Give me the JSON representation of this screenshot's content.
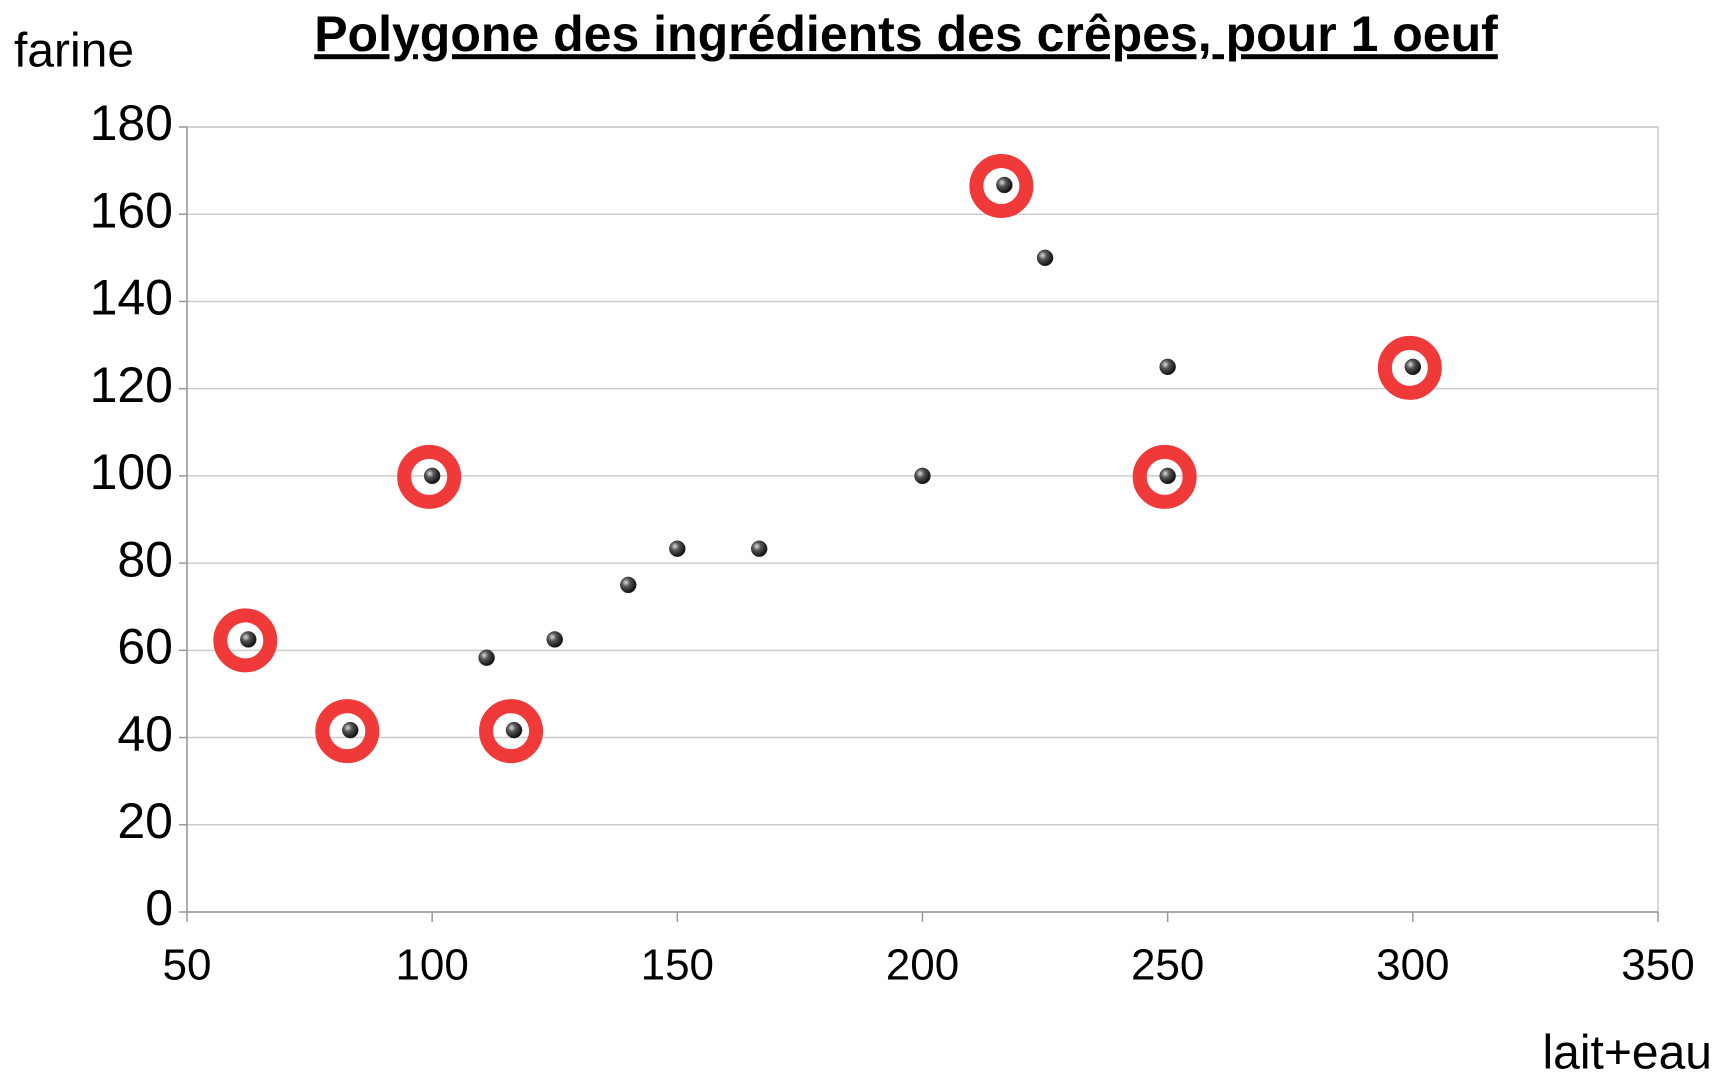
{
  "chart_data": {
    "type": "scatter",
    "title": "Polygone des ingrédients des crêpes, pour 1 oeuf",
    "x_label": "lait+eau",
    "y_label": "farine",
    "x": [
      62.5,
      83.3,
      100,
      111.1,
      116.7,
      125,
      140,
      150,
      166.7,
      200,
      216.7,
      225,
      250,
      250,
      300
    ],
    "values": [
      62.5,
      41.7,
      100,
      58.3,
      41.7,
      62.5,
      75,
      83.3,
      83.3,
      100,
      166.7,
      150,
      125,
      100,
      125
    ],
    "highlight": [
      true,
      true,
      true,
      false,
      true,
      false,
      false,
      false,
      false,
      false,
      true,
      false,
      false,
      true,
      true
    ],
    "color": "#333333",
    "highlight_color": "#f03a3a",
    "xlim": [
      50,
      350
    ],
    "xticks": [
      50,
      100,
      150,
      200,
      250,
      300,
      350
    ],
    "ylim": [
      0,
      180
    ],
    "yticks": [
      0,
      20,
      40,
      60,
      80,
      100,
      120,
      140,
      160,
      180
    ],
    "grid": true
  }
}
